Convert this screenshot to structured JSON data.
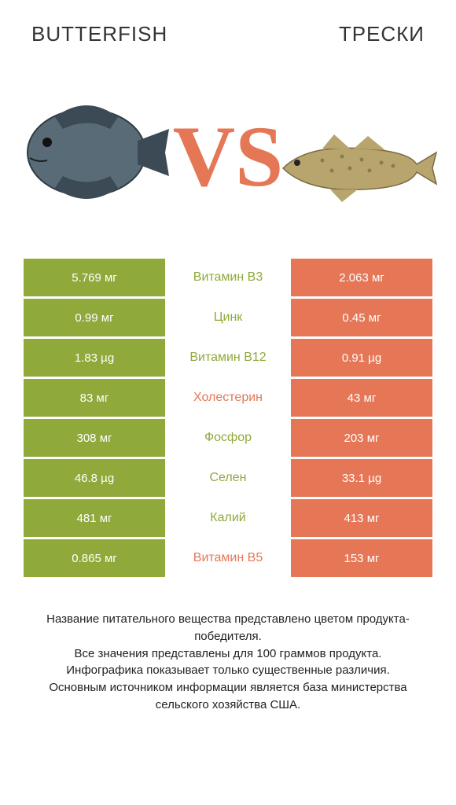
{
  "colors": {
    "left": "#8fa93b",
    "right": "#e57757",
    "mid_text_left": "#8fa93b",
    "mid_text_right": "#e57757",
    "value_text": "#ffffff",
    "body_text": "#222222"
  },
  "header": {
    "left": "BUTTERFISH",
    "right": "ТРЕСКИ"
  },
  "vs": "VS",
  "rows": [
    {
      "left": "5.769 мг",
      "mid": "Витамин B3",
      "right": "2.063 мг",
      "winner": "left"
    },
    {
      "left": "0.99 мг",
      "mid": "Цинк",
      "right": "0.45 мг",
      "winner": "left"
    },
    {
      "left": "1.83 µg",
      "mid": "Витамин B12",
      "right": "0.91 µg",
      "winner": "left"
    },
    {
      "left": "83 мг",
      "mid": "Холестерин",
      "right": "43 мг",
      "winner": "right"
    },
    {
      "left": "308 мг",
      "mid": "Фосфор",
      "right": "203 мг",
      "winner": "left"
    },
    {
      "left": "46.8 µg",
      "mid": "Селен",
      "right": "33.1 µg",
      "winner": "left"
    },
    {
      "left": "481 мг",
      "mid": "Калий",
      "right": "413 мг",
      "winner": "left"
    },
    {
      "left": "0.865 мг",
      "mid": "Витамин B5",
      "right": "153 мг",
      "winner": "right"
    }
  ],
  "footer": {
    "line1": "Название питательного вещества представлено цветом продукта-победителя.",
    "line2": "Все значения представлены для 100 граммов продукта.",
    "line3": "Инфографика показывает только существенные различия.",
    "line4": "Основным источником информации является база министерства сельского хозяйства США."
  },
  "fish_left_svg": {
    "body_fill": "#5a6b78",
    "body_stroke": "#2f3c45",
    "fin_fill": "#3b4a55"
  },
  "fish_right_svg": {
    "body_fill": "#b8a56e",
    "body_stroke": "#7a6a3f",
    "spot_fill": "#8c7a48"
  }
}
